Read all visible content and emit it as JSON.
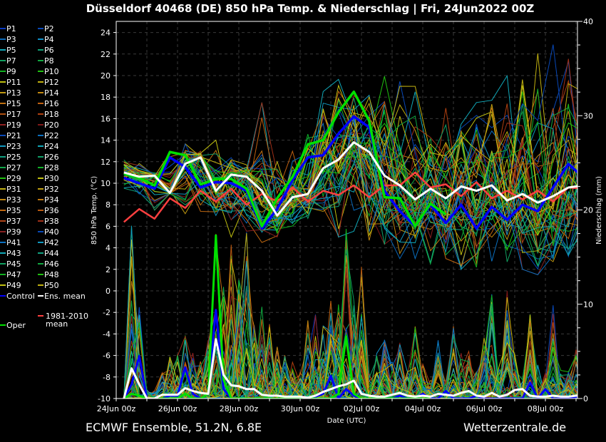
{
  "chart_data": {
    "type": "line",
    "title": "Düsseldorf 40468 (DE)  850 hPa Temp. & Niederschlag | Fri, 24Jun2022 00Z",
    "xlabel": "Date (UTC)",
    "ylabel": "850 hPa Temp. (°C)",
    "y2label": "Niederschlag (mm)",
    "footer_left": "ECMWF Ensemble, 51.2N, 6.8E",
    "footer_right": "Wetterzentrale.de",
    "ylim": [
      -10,
      25
    ],
    "y2lim": [
      0,
      40
    ],
    "yticks": [
      -10,
      -8,
      -6,
      -4,
      -2,
      0,
      2,
      4,
      6,
      8,
      10,
      12,
      14,
      16,
      18,
      20,
      22,
      24
    ],
    "y2ticks": [
      0,
      10,
      20,
      30,
      40
    ],
    "xticks": [
      "24Jun 00z",
      "26Jun 00z",
      "28Jun 00z",
      "30Jun 00z",
      "02Jul 00z",
      "04Jul 00z",
      "06Jul 00z",
      "08Jul 00z"
    ],
    "grid": true,
    "legend_placement": "left-outside",
    "temp_step_hours": 12,
    "precip_step_hours": 6,
    "first_step": "24Jun 06z",
    "temp_series": {
      "ens_mean": [
        11.0,
        10.6,
        10.7,
        9.1,
        11.8,
        12.4,
        9.3,
        10.8,
        10.6,
        9.3,
        7.0,
        8.7,
        9.0,
        11.4,
        12.2,
        13.8,
        12.9,
        10.7,
        9.8,
        8.5,
        9.5,
        8.6,
        9.7,
        9.3,
        9.8,
        8.4,
        9.0,
        8.2,
        8.8,
        9.6,
        9.8
      ],
      "control": [
        10.5,
        10.0,
        9.5,
        12.4,
        11.5,
        9.6,
        10.1,
        10.0,
        9.3,
        5.8,
        7.6,
        10.3,
        12.4,
        12.6,
        14.6,
        16.2,
        15.2,
        9.3,
        7.4,
        6.0,
        8.0,
        6.3,
        8.0,
        5.8,
        7.8,
        6.6,
        8.0,
        7.4,
        9.6,
        11.8,
        10.5
      ],
      "oper": [
        10.9,
        10.5,
        9.8,
        12.9,
        12.6,
        9.9,
        10.4,
        10.4,
        9.5,
        6.0,
        8.6,
        10.6,
        13.6,
        14.0,
        16.6,
        18.5,
        15.8,
        8.7,
        8.6,
        6.0,
        8.1,
        7.1
      ],
      "climate_1981_2010": [
        6.4,
        7.6,
        6.7,
        8.6,
        7.7,
        9.3,
        8.3,
        9.5,
        8.0,
        9.0,
        8.3,
        9.6,
        8.3,
        9.3,
        8.9,
        9.8,
        8.7,
        9.8,
        9.8,
        11.0,
        9.6,
        9.9,
        8.8,
        10.1,
        8.6,
        9.3,
        8.5,
        9.3,
        8.3,
        9.6,
        9.5
      ],
      "members_max": [
        12.5,
        12.0,
        11.0,
        14.0,
        14.0,
        13.0,
        14.0,
        13.0,
        12.0,
        17.5,
        12.0,
        14.0,
        17.0,
        19.5,
        20.0,
        19.0,
        19.0,
        21.5,
        21.5,
        19.0,
        18.0,
        18.5,
        18.0,
        17.5,
        19.0,
        20.0,
        21.0,
        23.0,
        23.0,
        22.0,
        21.0
      ],
      "members_min": [
        9.5,
        9.0,
        7.5,
        9.0,
        6.0,
        7.0,
        7.0,
        5.0,
        5.0,
        4.5,
        5.0,
        5.5,
        6.0,
        7.0,
        5.0,
        4.5,
        4.0,
        4.0,
        3.0,
        3.0,
        2.5,
        3.0,
        2.0,
        1.5,
        2.0,
        2.5,
        2.0,
        1.5,
        1.0,
        2.0,
        3.0
      ]
    },
    "precip_series": {
      "ens_mean": [
        0,
        3.2,
        1.5,
        0,
        0,
        0.4,
        0.4,
        0.4,
        1.1,
        0.8,
        0.6,
        0.5,
        6.3,
        2.5,
        1.4,
        1.3,
        1.0,
        1.0,
        0.4,
        0.3,
        0.3,
        0.2,
        0.2,
        0.2,
        0.1,
        0.3,
        0.7,
        1.0,
        1.3,
        1.5,
        1.9,
        0.5,
        0.3,
        0.2,
        0.2,
        0.4,
        0.6,
        0.3,
        0.2,
        0.3,
        0.2,
        0.5,
        0.4,
        0.3,
        0.6,
        0.8,
        0.3,
        0.2,
        0.6,
        0.2,
        0.4,
        0.9,
        1.0,
        0.3,
        0.2,
        0.2,
        0.3,
        0.2,
        0.2,
        0.3,
        0.3
      ],
      "control": [
        0,
        1.5,
        4.5,
        0,
        0,
        0,
        0.3,
        0.3,
        3.3,
        0.5,
        0,
        0.5,
        9.4,
        1.0,
        0,
        0,
        0,
        0,
        0,
        0,
        0,
        0,
        0,
        0,
        0,
        0.2,
        0.5,
        2.4,
        0,
        1.0,
        0.3,
        0,
        0,
        0,
        0,
        0,
        0.3,
        0,
        0,
        0.5,
        0,
        0,
        0.8,
        0,
        0,
        0,
        0.3,
        0,
        0,
        0,
        0,
        0,
        0,
        1.7,
        0,
        1.0,
        0,
        0,
        0,
        0.2,
        0
      ],
      "oper": [
        0,
        0.5,
        0.3,
        0,
        0,
        0,
        0,
        0,
        0.5,
        0,
        0,
        0.5,
        17.3,
        2.0,
        0,
        0,
        0,
        0,
        0,
        0,
        0,
        0,
        0,
        0,
        0,
        0,
        0,
        0,
        0.5,
        6.6,
        0.5,
        0,
        0,
        0,
        0,
        0,
        0,
        0,
        0,
        0,
        0
      ],
      "members_max": [
        0,
        19.5,
        11,
        1,
        1,
        3,
        5.5,
        5,
        7,
        5,
        4,
        7,
        20,
        12,
        19,
        15,
        18,
        9,
        11,
        8,
        6,
        5,
        4,
        3,
        11,
        9,
        8,
        11,
        10,
        18,
        11,
        15,
        3,
        5,
        7,
        4,
        6,
        3,
        9,
        4,
        2,
        8,
        2,
        10,
        5,
        5,
        3,
        9,
        12,
        4,
        12,
        5,
        2,
        10,
        4,
        3,
        10,
        3,
        3,
        6,
        5
      ]
    }
  },
  "legend": {
    "members": [
      {
        "label": "P1",
        "color": "#0838c0"
      },
      {
        "label": "P2",
        "color": "#0848b8"
      },
      {
        "label": "P3",
        "color": "#0a68b8"
      },
      {
        "label": "P4",
        "color": "#1090c8"
      },
      {
        "label": "P5",
        "color": "#10a8b8"
      },
      {
        "label": "P6",
        "color": "#10a078"
      },
      {
        "label": "P7",
        "color": "#10a060"
      },
      {
        "label": "P8",
        "color": "#10a840"
      },
      {
        "label": "P9",
        "color": "#10b020"
      },
      {
        "label": "P10",
        "color": "#20c010"
      },
      {
        "label": "P11",
        "color": "#c0c010"
      },
      {
        "label": "P12",
        "color": "#c0b010"
      },
      {
        "label": "P13",
        "color": "#c09810"
      },
      {
        "label": "P14",
        "color": "#c08810"
      },
      {
        "label": "P15",
        "color": "#c07010"
      },
      {
        "label": "P16",
        "color": "#c06010"
      },
      {
        "label": "P17",
        "color": "#b05010"
      },
      {
        "label": "P18",
        "color": "#b04010"
      },
      {
        "label": "P19",
        "color": "#902020"
      },
      {
        "label": "P20",
        "color": "#801818"
      },
      {
        "label": "P21",
        "color": "#0848b8"
      },
      {
        "label": "P22",
        "color": "#0a70c0"
      },
      {
        "label": "P23",
        "color": "#1098c0"
      },
      {
        "label": "P24",
        "color": "#10a8b8"
      },
      {
        "label": "P25",
        "color": "#10a080"
      },
      {
        "label": "P26",
        "color": "#10a068"
      },
      {
        "label": "P27",
        "color": "#10a848"
      },
      {
        "label": "P28",
        "color": "#10b028"
      },
      {
        "label": "P29",
        "color": "#20c010"
      },
      {
        "label": "P30",
        "color": "#c0c010"
      },
      {
        "label": "P31",
        "color": "#c0b010"
      },
      {
        "label": "P32",
        "color": "#c0a010"
      },
      {
        "label": "P33",
        "color": "#c08810"
      },
      {
        "label": "P34",
        "color": "#c07810"
      },
      {
        "label": "P35",
        "color": "#c06810"
      },
      {
        "label": "P36",
        "color": "#b85810"
      },
      {
        "label": "P37",
        "color": "#b04418"
      },
      {
        "label": "P38",
        "color": "#a03018"
      },
      {
        "label": "P39",
        "color": "#882020"
      },
      {
        "label": "P40",
        "color": "#0848b8"
      },
      {
        "label": "P41",
        "color": "#0a70c0"
      },
      {
        "label": "P42",
        "color": "#1098c0"
      },
      {
        "label": "P43",
        "color": "#10a8b8"
      },
      {
        "label": "P44",
        "color": "#10a080"
      },
      {
        "label": "P45",
        "color": "#10a060"
      },
      {
        "label": "P46",
        "color": "#10a840"
      },
      {
        "label": "P47",
        "color": "#10b020"
      },
      {
        "label": "P48",
        "color": "#20c010"
      },
      {
        "label": "P49",
        "color": "#c0c010"
      },
      {
        "label": "P50",
        "color": "#c0b010"
      }
    ],
    "control": {
      "label": "Control",
      "color": "#0000ff"
    },
    "ens_mean": {
      "label": "Ens. mean",
      "color": "#ffffff"
    },
    "climate_line1": "1981-2010",
    "climate_line2": "mean",
    "climate_color": "#ff4040",
    "oper": {
      "label": "Oper",
      "color": "#00e000"
    }
  },
  "colors": {
    "background": "#000000",
    "grid": "#3a3a3a",
    "axis": "#ffffff"
  }
}
